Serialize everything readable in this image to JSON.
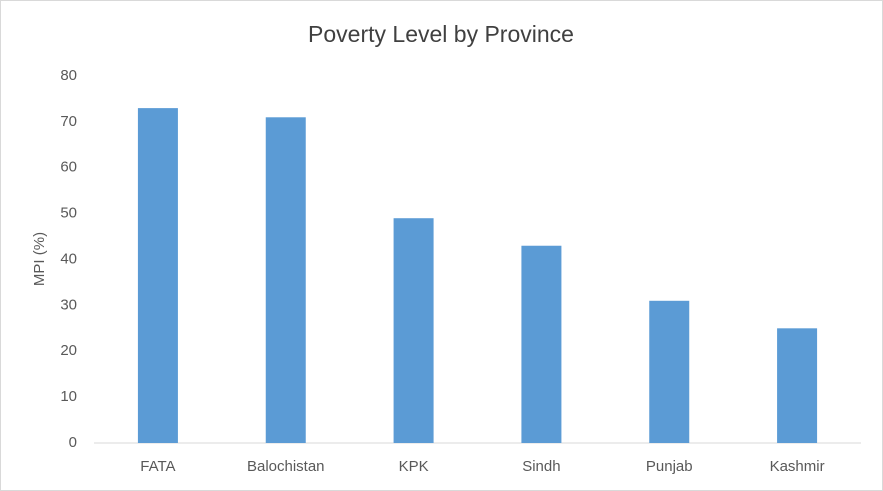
{
  "chart_data": {
    "type": "bar",
    "title": "Poverty Level by Province",
    "y_label": "MPI (%)",
    "categories": [
      "FATA",
      "Balochistan",
      "KPK",
      "Sindh",
      "Punjab",
      "Kashmir"
    ],
    "values": [
      73,
      71,
      49,
      43,
      31,
      25
    ],
    "color": "#5b9bd5",
    "ylim": [
      0,
      80
    ],
    "yticks": [
      0,
      10,
      20,
      30,
      40,
      50,
      60,
      70,
      80
    ],
    "grid": false
  }
}
